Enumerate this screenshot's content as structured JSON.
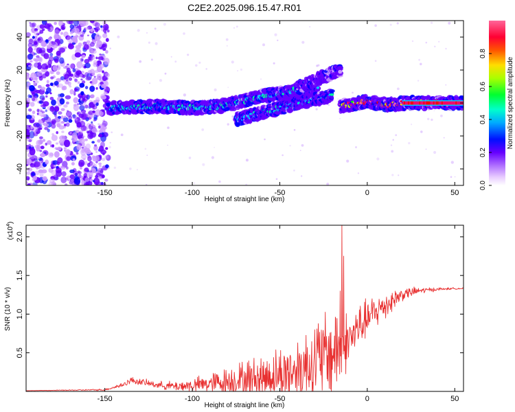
{
  "figure_title": "C2E2.2025.096.15.47.R01",
  "chart_data": [
    {
      "type": "heatmap",
      "panel": "top",
      "xlabel": "Height of straight line (km)",
      "ylabel": "Frequency (Hz)",
      "xlim": [
        -195,
        55
      ],
      "ylim": [
        -50,
        50
      ],
      "xticks": [
        -150,
        -100,
        -50,
        0,
        50
      ],
      "yticks": [
        -40,
        -20,
        0,
        20,
        40
      ],
      "colorbar": {
        "label": "Normalized spectral amplitude",
        "range": [
          0,
          1
        ],
        "ticks": [
          "0.0",
          "0.2",
          "0.4",
          "0.6",
          "0.8"
        ],
        "tick_values": [
          0.0,
          0.2,
          0.4,
          0.6,
          0.8
        ],
        "colormap": [
          "#ffffff",
          "#cc99ff",
          "#6600ff",
          "#0000ff",
          "#00ccff",
          "#00ff99",
          "#00ff00",
          "#ccff00",
          "#ffcc00",
          "#ff6600",
          "#ff0000",
          "#ff0066",
          "#ff66aa"
        ]
      },
      "noise_region": {
        "x_range": [
          -195,
          -148
        ],
        "y_range": [
          -50,
          50
        ]
      },
      "ridges": [
        {
          "x": [
            -148,
            -120,
            -100,
            -85,
            -75,
            -65,
            -55,
            -45,
            -35,
            -28
          ],
          "y": [
            -3,
            -2,
            -3,
            -2,
            0,
            3,
            5,
            7,
            9,
            10
          ],
          "amplitude": 0.35
        },
        {
          "x": [
            -75,
            -60,
            -50,
            -40,
            -30,
            -20
          ],
          "y": [
            -10,
            -6,
            -3,
            0,
            2,
            4
          ],
          "amplitude": 0.3
        },
        {
          "x": [
            -40,
            -30,
            -20,
            -15
          ],
          "y": [
            9,
            14,
            18,
            20
          ],
          "amplitude": 0.15
        },
        {
          "x": [
            -15,
            -5,
            0,
            5,
            10,
            15,
            20,
            30,
            40,
            55
          ],
          "y": [
            -2,
            0,
            1,
            0,
            -1,
            -1,
            0,
            0,
            0,
            0
          ],
          "amplitude": 0.85
        }
      ]
    },
    {
      "type": "line",
      "panel": "bottom",
      "xlabel": "Height of straight line (km)",
      "ylabel": "SNR (10 * v/v)",
      "y_multiplier": "(x10",
      "y_multiplier_exp": "4",
      "y_multiplier_close": ")",
      "xlim": [
        -195,
        55
      ],
      "ylim": [
        0,
        2.15
      ],
      "xticks": [
        -150,
        -100,
        -50,
        0,
        50
      ],
      "yticks": [
        0.5,
        1.0,
        1.5,
        2.0
      ],
      "ytick_labels": [
        "0.5",
        "1.0",
        "1.5",
        "2.0"
      ],
      "color": "#e83030",
      "envelope": {
        "x": [
          -195,
          -150,
          -140,
          -135,
          -120,
          -110,
          -100,
          -90,
          -80,
          -70,
          -60,
          -50,
          -40,
          -30,
          -20,
          -15,
          -12,
          -10,
          -5,
          0,
          10,
          20,
          30,
          40,
          50,
          55
        ],
        "base": [
          0.01,
          0.02,
          0.08,
          0.14,
          0.08,
          0.06,
          0.07,
          0.09,
          0.12,
          0.14,
          0.16,
          0.2,
          0.25,
          0.35,
          0.45,
          0.55,
          0.6,
          0.65,
          0.8,
          0.92,
          1.1,
          1.25,
          1.3,
          1.32,
          1.33,
          1.33
        ],
        "noise": [
          0.0,
          0.01,
          0.03,
          0.04,
          0.04,
          0.06,
          0.08,
          0.12,
          0.16,
          0.22,
          0.26,
          0.3,
          0.4,
          0.5,
          0.55,
          0.55,
          0.35,
          0.3,
          0.28,
          0.22,
          0.18,
          0.08,
          0.04,
          0.02,
          0.01,
          0.01
        ]
      },
      "spikes": [
        {
          "x": -14.5,
          "y": 2.15
        },
        {
          "x": -13.5,
          "y": 1.75
        },
        {
          "x": -15.5,
          "y": 1.3
        }
      ]
    }
  ]
}
